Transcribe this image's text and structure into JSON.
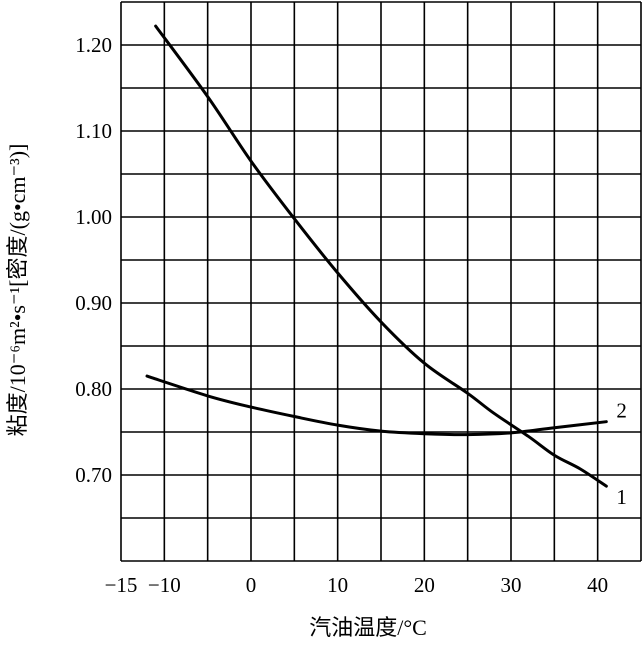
{
  "chart_data": {
    "type": "line",
    "xlabel": "汽油温度/°C",
    "ylabel": "粘度/10⁻⁶m²•s⁻¹[密度/(g•cm⁻³)]",
    "xlim": [
      -15,
      45
    ],
    "ylim": [
      0.6,
      1.25
    ],
    "x_ticks": [
      {
        "value": -15,
        "label": "−15"
      },
      {
        "value": -10,
        "label": "−10"
      },
      {
        "value": 0,
        "label": "0"
      },
      {
        "value": 10,
        "label": "10"
      },
      {
        "value": 20,
        "label": "20"
      },
      {
        "value": 30,
        "label": "30"
      },
      {
        "value": 40,
        "label": "40"
      }
    ],
    "y_ticks": [
      {
        "value": 0.7,
        "label": "0.70"
      },
      {
        "value": 0.8,
        "label": "0.80"
      },
      {
        "value": 0.9,
        "label": "0.90"
      },
      {
        "value": 1.0,
        "label": "1.00"
      },
      {
        "value": 1.1,
        "label": "1.10"
      },
      {
        "value": 1.2,
        "label": "1.20"
      }
    ],
    "grid": true,
    "grid_x_step": 5,
    "grid_y_step": 0.05,
    "series": [
      {
        "name": "1",
        "points": [
          [
            -11,
            1.222
          ],
          [
            -5,
            1.14
          ],
          [
            0,
            1.065
          ],
          [
            5,
            0.998
          ],
          [
            10,
            0.935
          ],
          [
            15,
            0.878
          ],
          [
            20,
            0.83
          ],
          [
            25,
            0.795
          ],
          [
            28,
            0.772
          ],
          [
            32,
            0.745
          ],
          [
            35,
            0.723
          ],
          [
            38,
            0.707
          ],
          [
            41,
            0.687
          ]
        ]
      },
      {
        "name": "2",
        "points": [
          [
            -12,
            0.815
          ],
          [
            -5,
            0.792
          ],
          [
            0,
            0.779
          ],
          [
            5,
            0.768
          ],
          [
            10,
            0.758
          ],
          [
            15,
            0.751
          ],
          [
            20,
            0.748
          ],
          [
            25,
            0.747
          ],
          [
            30,
            0.749
          ],
          [
            35,
            0.755
          ],
          [
            41,
            0.762
          ]
        ]
      }
    ]
  }
}
